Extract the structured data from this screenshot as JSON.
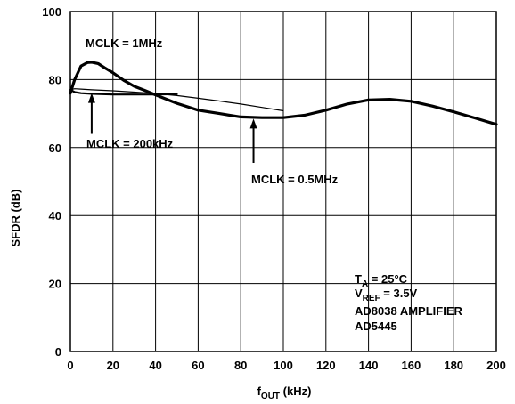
{
  "chart_data": {
    "type": "line",
    "xlabel_main": "f",
    "xlabel_sub": "OUT",
    "xlabel_unit": " (kHz)",
    "ylabel": "SFDR (dB)",
    "xlim": [
      0,
      200
    ],
    "ylim": [
      0,
      100
    ],
    "x_ticks": [
      0,
      20,
      40,
      60,
      80,
      100,
      120,
      140,
      160,
      180,
      200
    ],
    "y_ticks": [
      0,
      20,
      40,
      60,
      80,
      100
    ],
    "grid": true,
    "series": [
      {
        "name": "MCLK = 1MHz",
        "stroke": "thick",
        "x": [
          0,
          2,
          5,
          8,
          10,
          13,
          16,
          20,
          25,
          30,
          35,
          40,
          50,
          60,
          70,
          80,
          90,
          100,
          110,
          120,
          130,
          140,
          150,
          160,
          170,
          180,
          190,
          200
        ],
        "y": [
          76,
          80,
          84,
          85,
          85.1,
          84.7,
          83.5,
          82,
          79.8,
          78,
          76.8,
          75.5,
          73,
          71,
          70,
          69,
          68.8,
          68.8,
          69.5,
          71,
          72.8,
          74,
          74.2,
          73.6,
          72.2,
          70.5,
          68.7,
          66.8
        ]
      },
      {
        "name": "MCLK = 200kHz",
        "stroke": "medium",
        "x": [
          0,
          2,
          5,
          10,
          15,
          20,
          30,
          40,
          50
        ],
        "y": [
          77,
          76.3,
          76,
          75.8,
          75.7,
          75.6,
          75.6,
          75.6,
          75.7
        ]
      },
      {
        "name": "MCLK = 0.5MHz",
        "stroke": "thin",
        "x": [
          0,
          2,
          5,
          10,
          20,
          30,
          40,
          50,
          60,
          70,
          80,
          90,
          100
        ],
        "y": [
          77,
          77.3,
          77.2,
          77,
          76.7,
          76.3,
          75.9,
          75.3,
          74.5,
          73.7,
          72.8,
          71.8,
          70.8
        ]
      }
    ],
    "annotations": {
      "mclk_1mhz": "MCLK = 1MHz",
      "mclk_200khz": "MCLK = 200kHz",
      "mclk_05mhz": "MCLK = 0.5MHz",
      "cond_ta_main": "T",
      "cond_ta_sub": "A",
      "cond_ta_rest": " = 25°C",
      "cond_vref_main": "V",
      "cond_vref_sub": "REF",
      "cond_vref_rest": " = 3.5V",
      "cond_amp": "AD8038 AMPLIFIER",
      "cond_part": "AD5445"
    },
    "arrows": [
      {
        "target": "MCLK = 200kHz",
        "x": 10,
        "y_from": 64,
        "y_to": 76
      },
      {
        "target": "MCLK = 0.5MHz",
        "x": 86,
        "y_from": 55.5,
        "y_to": 68.5
      }
    ]
  }
}
